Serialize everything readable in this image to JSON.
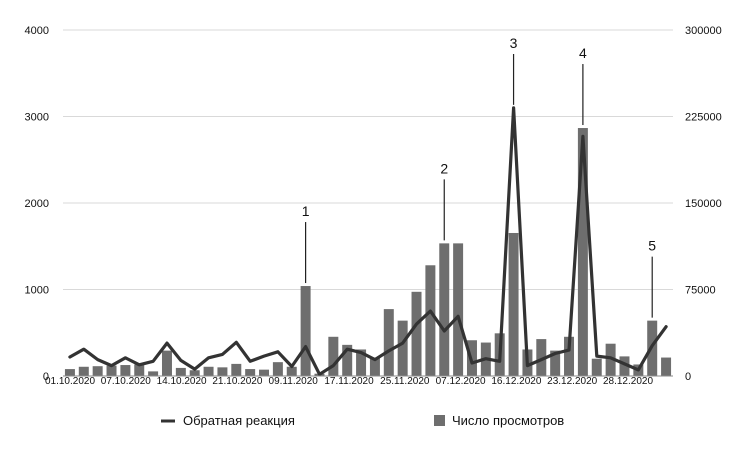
{
  "chart_data": {
    "type": "bar",
    "title": "",
    "xlabel": "",
    "ylabel": "",
    "x_tick_labels": [
      "01.10.2020",
      "07.10.2020",
      "14.10.2020",
      "21.10.2020",
      "09.11.2020",
      "17.11.2020",
      "25.11.2020",
      "07.12.2020",
      "16.12.2020",
      "23.12.2020",
      "28.12.2020"
    ],
    "y_left": {
      "ylim": [
        0,
        4000
      ],
      "ticks": [
        "0",
        "1000",
        "2000",
        "3000",
        "4000"
      ]
    },
    "y_right": {
      "ylim": [
        0,
        300000
      ],
      "ticks": [
        "0",
        "75000",
        "150000",
        "225000",
        "300000"
      ]
    },
    "grid": true,
    "legend_position": "bottom",
    "colors": {
      "bars": "#6e6e6e",
      "line": "#333333",
      "grid": "#d9d9d9"
    },
    "series": [
      {
        "name": "Число просмотров",
        "axis": "right",
        "kind": "bar",
        "values": [
          6000,
          8000,
          8500,
          9000,
          9500,
          10000,
          4000,
          22000,
          7000,
          5000,
          8000,
          7500,
          10500,
          6000,
          5500,
          12000,
          8000,
          78000,
          2000,
          34000,
          27000,
          23000,
          16000,
          58000,
          48000,
          73000,
          96000,
          115000,
          115000,
          31000,
          29000,
          37000,
          124000,
          23000,
          32000,
          22000,
          34000,
          215000,
          15000,
          28000,
          17000,
          10000,
          48000,
          16000
        ]
      },
      {
        "name": "Обратная реакция",
        "axis": "left",
        "kind": "line",
        "values": [
          220,
          310,
          190,
          120,
          210,
          130,
          170,
          380,
          180,
          80,
          210,
          250,
          390,
          170,
          230,
          280,
          110,
          340,
          20,
          120,
          310,
          270,
          190,
          290,
          380,
          600,
          750,
          520,
          690,
          150,
          200,
          170,
          3100,
          120,
          190,
          260,
          300,
          2770,
          230,
          210,
          140,
          70,
          350,
          570
        ]
      }
    ],
    "annotations": [
      {
        "label": "1",
        "index": 17
      },
      {
        "label": "2",
        "index": 27
      },
      {
        "label": "3",
        "index": 32
      },
      {
        "label": "4",
        "index": 37
      },
      {
        "label": "5",
        "index": 42
      }
    ]
  }
}
